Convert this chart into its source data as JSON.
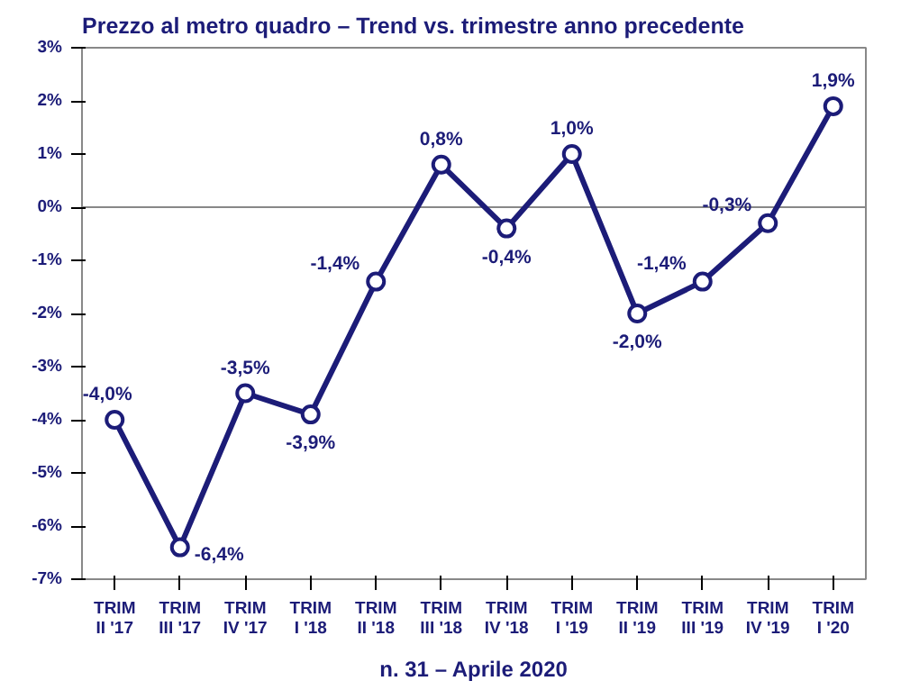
{
  "chart_data": {
    "type": "line",
    "title": "Prezzo al metro quadro – Trend vs. trimestre anno precedente",
    "categories": [
      "TRIM\nII '17",
      "TRIM\nIII '17",
      "TRIM\nIV '17",
      "TRIM\nI '18",
      "TRIM\nII '18",
      "TRIM\nIII '18",
      "TRIM\nIV '18",
      "TRIM\nI '19",
      "TRIM\nII '19",
      "TRIM\nIII '19",
      "TRIM\nIV '19",
      "TRIM\nI '20"
    ],
    "series": [
      {
        "color": "#1c1c78",
        "values": [
          -4.0,
          -6.4,
          -3.5,
          -3.9,
          -1.4,
          0.8,
          -0.4,
          1.0,
          -2.0,
          -1.4,
          -0.3,
          1.9
        ]
      }
    ],
    "value_labels": [
      "-4,0%",
      "-6,4%",
      "-3,5%",
      "-3,9%",
      "-1,4%",
      "0,8%",
      "-0,4%",
      "1,0%",
      "-2,0%",
      "-1,4%",
      "-0,3%",
      "1,9%"
    ],
    "ylim": [
      -7,
      3
    ],
    "yticks": [
      {
        "value": -7,
        "label": "-7%"
      },
      {
        "value": -6,
        "label": "-6%"
      },
      {
        "value": -5,
        "label": "-5%"
      },
      {
        "value": -4,
        "label": "-4%"
      },
      {
        "value": -3,
        "label": "-3%"
      },
      {
        "value": -2,
        "label": "-2%"
      },
      {
        "value": -1,
        "label": "-1%"
      },
      {
        "value": 0,
        "label": "0%"
      },
      {
        "value": 1,
        "label": "1%"
      },
      {
        "value": 2,
        "label": "2%"
      },
      {
        "value": 3,
        "label": "3%"
      }
    ],
    "grid": false,
    "ref_lines": [
      {
        "axis": "y",
        "value": 0
      }
    ],
    "marker": "circle",
    "line_style": "solid",
    "annotations": [
      "n. 31 – Aprile 2020"
    ]
  }
}
